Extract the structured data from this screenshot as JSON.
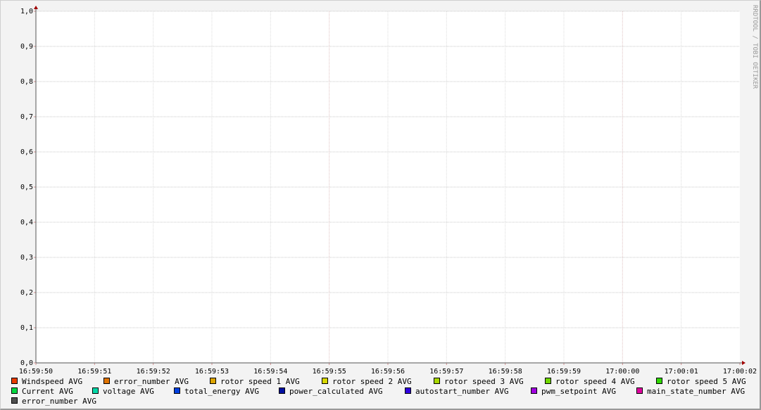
{
  "chart_data": {
    "type": "line",
    "title": "",
    "xlabel": "",
    "ylabel": "",
    "ylim": [
      0,
      1
    ],
    "y_ticks": [
      "0,0",
      "0,1",
      "0,2",
      "0,3",
      "0,4",
      "0,5",
      "0,6",
      "0,7",
      "0,8",
      "0,9",
      "1,0"
    ],
    "x_ticks": [
      "16:59:50",
      "16:59:51",
      "16:59:52",
      "16:59:53",
      "16:59:54",
      "16:59:55",
      "16:59:56",
      "16:59:57",
      "16:59:58",
      "16:59:59",
      "17:00:00",
      "17:00:01",
      "17:00:02"
    ],
    "grid": true,
    "legend_placement": "bottom",
    "watermark": "RRDTOOL / TOBI OETIKER",
    "series": [
      {
        "name": "Windspeed AVG",
        "color": "#e83c00",
        "values": []
      },
      {
        "name": "error_number AVG",
        "color": "#e07400",
        "values": []
      },
      {
        "name": "rotor speed 1 AVG",
        "color": "#dca400",
        "values": []
      },
      {
        "name": "rotor speed 2 AVG",
        "color": "#d8d800",
        "values": []
      },
      {
        "name": "rotor speed 3 AVG",
        "color": "#a8d800",
        "values": []
      },
      {
        "name": "rotor speed 4 AVG",
        "color": "#70d800",
        "values": []
      },
      {
        "name": "rotor speed 5 AVG",
        "color": "#30d800",
        "values": []
      },
      {
        "name": "Current AVG",
        "color": "#00d840",
        "values": []
      },
      {
        "name": "voltage AVG",
        "color": "#00d8a8",
        "values": []
      },
      {
        "name": "total_energy AVG",
        "color": "#0040e0",
        "values": []
      },
      {
        "name": "power_calculated AVG",
        "color": "#0010a0",
        "values": []
      },
      {
        "name": "autostart_number AVG",
        "color": "#3000e0",
        "values": []
      },
      {
        "name": "pwm_setpoint AVG",
        "color": "#a000e0",
        "values": []
      },
      {
        "name": "main_state_number AVG",
        "color": "#e000a0",
        "values": []
      },
      {
        "name": "error_number AVG",
        "color": "#505050",
        "values": []
      }
    ]
  }
}
